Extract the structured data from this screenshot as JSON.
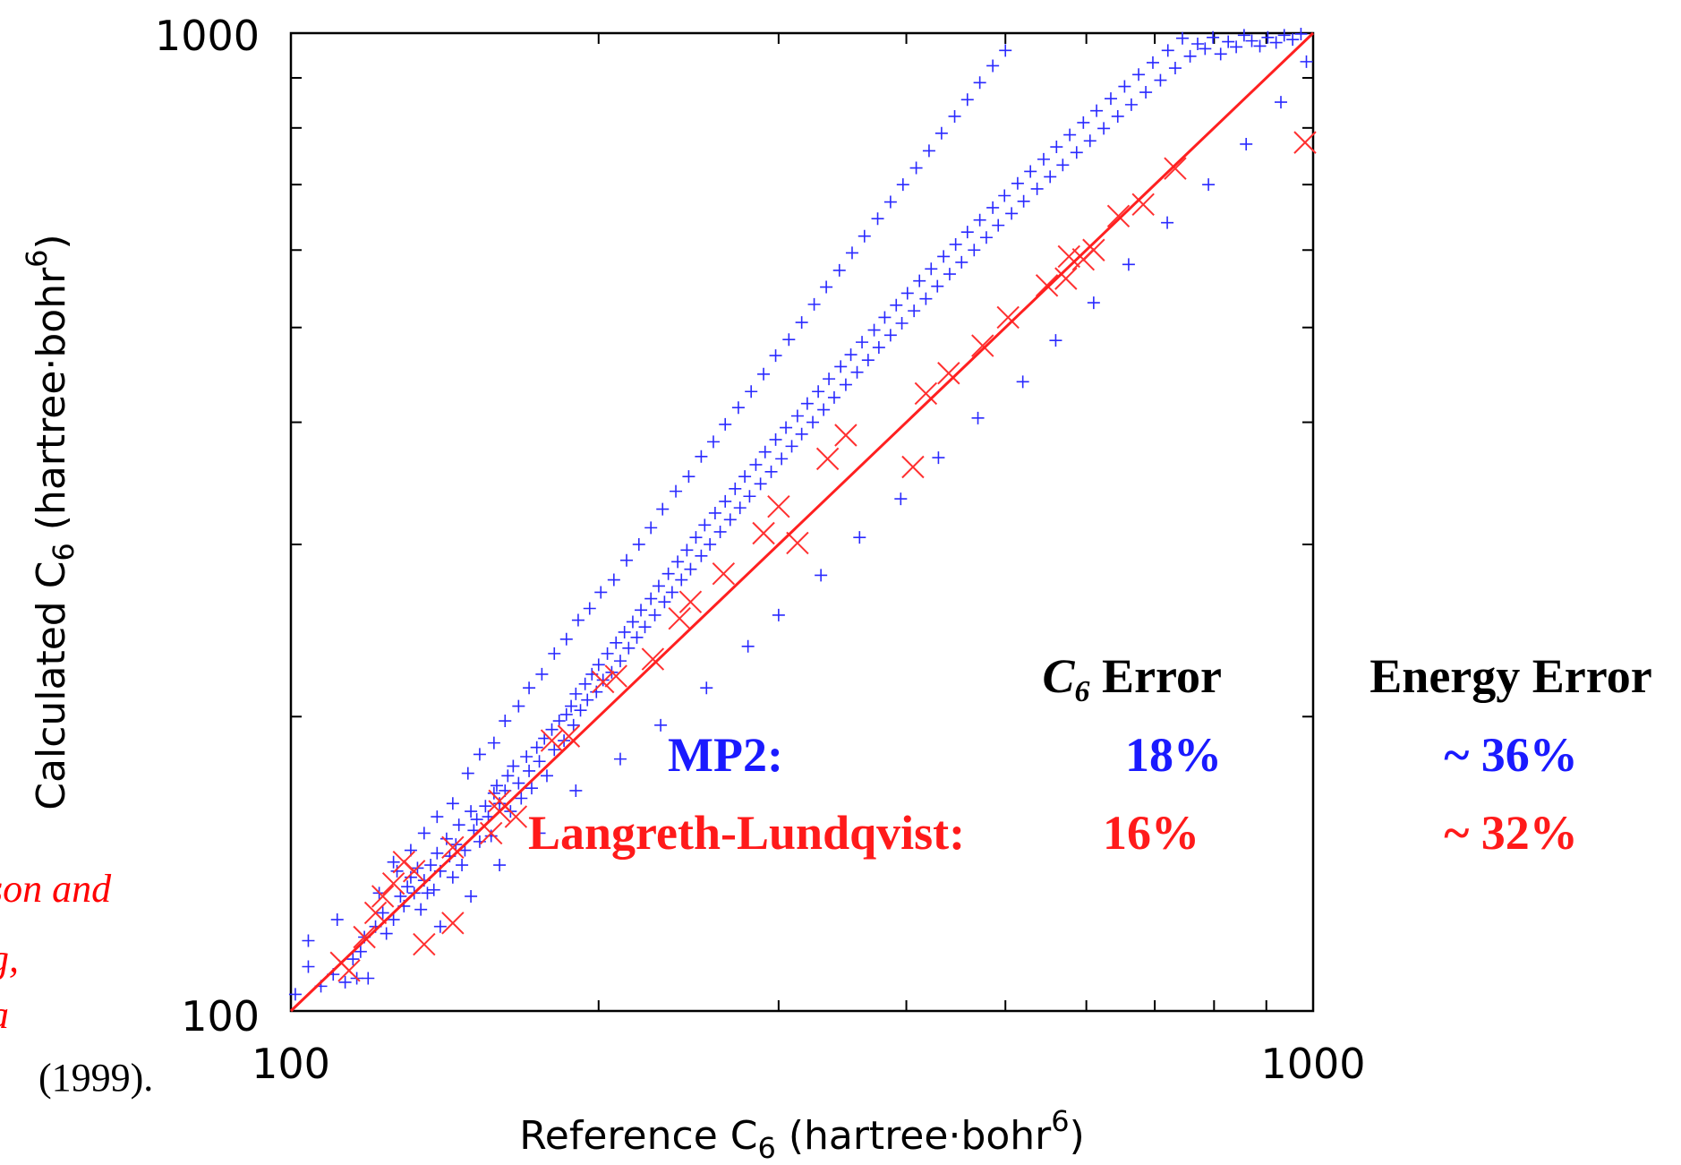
{
  "chart_data": {
    "type": "scatter",
    "title": "",
    "xlabel": {
      "text": "Reference C",
      "sub": "6",
      "unit_pre": " (hartree·bohr",
      "sup": "6",
      "unit_post": ")"
    },
    "ylabel": {
      "text": "Calculated C",
      "sub": "6",
      "unit_pre": " (hartree·bohr",
      "sup": "6",
      "unit_post": ")"
    },
    "xscale": "log",
    "yscale": "log",
    "xlim": [
      100,
      1000
    ],
    "ylim": [
      100,
      1000
    ],
    "x_tick_labels": [
      "100",
      "1000"
    ],
    "y_tick_labels": [
      "100",
      "1000"
    ],
    "reference_line": {
      "from": [
        100,
        100
      ],
      "to": [
        1000,
        1000
      ],
      "color": "#ff2020"
    },
    "series": [
      {
        "marker": "plus",
        "color": "#2a2aff",
        "points": [
          [
            101,
            104
          ],
          [
            104,
            111
          ],
          [
            107,
            106
          ],
          [
            110,
            109
          ],
          [
            113,
            107
          ],
          [
            115,
            113
          ],
          [
            116,
            108
          ],
          [
            118,
            119
          ],
          [
            119,
            108
          ],
          [
            121,
            122
          ],
          [
            123,
            126
          ],
          [
            124,
            120
          ],
          [
            126,
            124
          ],
          [
            127,
            139
          ],
          [
            128,
            131
          ],
          [
            129,
            128
          ],
          [
            130,
            134
          ],
          [
            131,
            137
          ],
          [
            132,
            132
          ],
          [
            133,
            140
          ],
          [
            134,
            127
          ],
          [
            135,
            136
          ],
          [
            136,
            132
          ],
          [
            137,
            141
          ],
          [
            138,
            133
          ],
          [
            139,
            145
          ],
          [
            140,
            139
          ],
          [
            142,
            150
          ],
          [
            143,
            144
          ],
          [
            144,
            137
          ],
          [
            145,
            148
          ],
          [
            146,
            155
          ],
          [
            147,
            141
          ],
          [
            148,
            146
          ],
          [
            150,
            160
          ],
          [
            151,
            153
          ],
          [
            152,
            157
          ],
          [
            153,
            149
          ],
          [
            155,
            162
          ],
          [
            156,
            158
          ],
          [
            157,
            151
          ],
          [
            158,
            167
          ],
          [
            159,
            170
          ],
          [
            160,
            163
          ],
          [
            162,
            168
          ],
          [
            163,
            174
          ],
          [
            164,
            160
          ],
          [
            165,
            178
          ],
          [
            167,
            171
          ],
          [
            168,
            165
          ],
          [
            170,
            182
          ],
          [
            171,
            176
          ],
          [
            172,
            169
          ],
          [
            174,
            186
          ],
          [
            175,
            180
          ],
          [
            177,
            190
          ],
          [
            178,
            174
          ],
          [
            180,
            194
          ],
          [
            181,
            185
          ],
          [
            183,
            198
          ],
          [
            185,
            189
          ],
          [
            186,
            201
          ],
          [
            188,
            205
          ],
          [
            189,
            196
          ],
          [
            190,
            211
          ],
          [
            192,
            203
          ],
          [
            194,
            216
          ],
          [
            195,
            208
          ],
          [
            197,
            221
          ],
          [
            199,
            212
          ],
          [
            200,
            226
          ],
          [
            202,
            218
          ],
          [
            204,
            232
          ],
          [
            206,
            222
          ],
          [
            208,
            238
          ],
          [
            210,
            228
          ],
          [
            212,
            244
          ],
          [
            214,
            235
          ],
          [
            216,
            250
          ],
          [
            218,
            241
          ],
          [
            220,
            257
          ],
          [
            222,
            247
          ],
          [
            225,
            264
          ],
          [
            227,
            254
          ],
          [
            229,
            272
          ],
          [
            232,
            262
          ],
          [
            234,
            280
          ],
          [
            236,
            268
          ],
          [
            239,
            288
          ],
          [
            241,
            276
          ],
          [
            244,
            296
          ],
          [
            246,
            283
          ],
          [
            249,
            305
          ],
          [
            252,
            292
          ],
          [
            254,
            314
          ],
          [
            257,
            300
          ],
          [
            260,
            323
          ],
          [
            263,
            309
          ],
          [
            266,
            332
          ],
          [
            269,
            318
          ],
          [
            272,
            342
          ],
          [
            275,
            327
          ],
          [
            278,
            352
          ],
          [
            281,
            336
          ],
          [
            285,
            362
          ],
          [
            288,
            346
          ],
          [
            291,
            373
          ],
          [
            295,
            356
          ],
          [
            298,
            384
          ],
          [
            302,
            367
          ],
          [
            305,
            395
          ],
          [
            309,
            378
          ],
          [
            313,
            406
          ],
          [
            316,
            389
          ],
          [
            320,
            418
          ],
          [
            324,
            400
          ],
          [
            328,
            430
          ],
          [
            332,
            412
          ],
          [
            336,
            443
          ],
          [
            340,
            424
          ],
          [
            345,
            456
          ],
          [
            349,
            437
          ],
          [
            353,
            469
          ],
          [
            358,
            450
          ],
          [
            362,
            483
          ],
          [
            367,
            463
          ],
          [
            372,
            497
          ],
          [
            376,
            477
          ],
          [
            381,
            512
          ],
          [
            386,
            491
          ],
          [
            391,
            527
          ],
          [
            396,
            505
          ],
          [
            401,
            542
          ],
          [
            407,
            520
          ],
          [
            412,
            558
          ],
          [
            418,
            535
          ],
          [
            423,
            574
          ],
          [
            429,
            551
          ],
          [
            435,
            591
          ],
          [
            441,
            567
          ],
          [
            447,
            608
          ],
          [
            453,
            583
          ],
          [
            459,
            626
          ],
          [
            466,
            600
          ],
          [
            472,
            644
          ],
          [
            479,
            618
          ],
          [
            486,
            663
          ],
          [
            492,
            636
          ],
          [
            499,
            682
          ],
          [
            507,
            654
          ],
          [
            514,
            702
          ],
          [
            521,
            673
          ],
          [
            529,
            722
          ],
          [
            537,
            693
          ],
          [
            545,
            743
          ],
          [
            553,
            713
          ],
          [
            561,
            765
          ],
          [
            569,
            733
          ],
          [
            578,
            787
          ],
          [
            587,
            755
          ],
          [
            596,
            810
          ],
          [
            605,
            776
          ],
          [
            614,
            833
          ],
          [
            624,
            799
          ],
          [
            634,
            857
          ],
          [
            644,
            822
          ],
          [
            654,
            882
          ],
          [
            664,
            845
          ],
          [
            675,
            907
          ],
          [
            686,
            870
          ],
          [
            697,
            933
          ],
          [
            709,
            895
          ],
          [
            721,
            960
          ],
          [
            733,
            921
          ],
          [
            745,
            988
          ],
          [
            758,
            947
          ],
          [
            771,
            975
          ],
          [
            784,
            964
          ],
          [
            798,
            990
          ],
          [
            812,
            952
          ],
          [
            826,
            980
          ],
          [
            841,
            968
          ],
          [
            856,
            995
          ],
          [
            871,
            982
          ],
          [
            887,
            970
          ],
          [
            903,
            990
          ],
          [
            920,
            978
          ],
          [
            937,
            995
          ],
          [
            955,
            985
          ],
          [
            973,
            998
          ],
          [
            104,
            118
          ],
          [
            111,
            124
          ],
          [
            117,
            115
          ],
          [
            122,
            132
          ],
          [
            126,
            142
          ],
          [
            131,
            146
          ],
          [
            135,
            152
          ],
          [
            139,
            158
          ],
          [
            144,
            163
          ],
          [
            149,
            175
          ],
          [
            153,
            183
          ],
          [
            158,
            188
          ],
          [
            162,
            198
          ],
          [
            167,
            205
          ],
          [
            171,
            214
          ],
          [
            176,
            221
          ],
          [
            181,
            232
          ],
          [
            186,
            240
          ],
          [
            191,
            251
          ],
          [
            196,
            258
          ],
          [
            201,
            268
          ],
          [
            207,
            276
          ],
          [
            213,
            289
          ],
          [
            219,
            300
          ],
          [
            225,
            312
          ],
          [
            231,
            326
          ],
          [
            238,
            340
          ],
          [
            245,
            352
          ],
          [
            252,
            369
          ],
          [
            259,
            382
          ],
          [
            266,
            398
          ],
          [
            274,
            414
          ],
          [
            282,
            430
          ],
          [
            290,
            448
          ],
          [
            298,
            468
          ],
          [
            307,
            486
          ],
          [
            316,
            506
          ],
          [
            325,
            528
          ],
          [
            334,
            550
          ],
          [
            344,
            572
          ],
          [
            354,
            596
          ],
          [
            364,
            620
          ],
          [
            375,
            646
          ],
          [
            386,
            672
          ],
          [
            397,
            700
          ],
          [
            409,
            728
          ],
          [
            421,
            758
          ],
          [
            433,
            790
          ],
          [
            446,
            822
          ],
          [
            459,
            855
          ],
          [
            472,
            890
          ],
          [
            486,
            926
          ],
          [
            500,
            960
          ],
          [
            140,
            122
          ],
          [
            150,
            131
          ],
          [
            160,
            141
          ],
          [
            175,
            152
          ],
          [
            190,
            168
          ],
          [
            210,
            181
          ],
          [
            230,
            196
          ],
          [
            255,
            214
          ],
          [
            280,
            236
          ],
          [
            300,
            254
          ],
          [
            330,
            279
          ],
          [
            360,
            305
          ],
          [
            395,
            334
          ],
          [
            430,
            368
          ],
          [
            470,
            404
          ],
          [
            520,
            440
          ],
          [
            560,
            485
          ],
          [
            610,
            530
          ],
          [
            660,
            580
          ],
          [
            720,
            640
          ],
          [
            790,
            700
          ],
          [
            860,
            770
          ],
          [
            930,
            850
          ],
          [
            985,
            935
          ]
        ]
      },
      {
        "marker": "cross",
        "color": "#ff3030",
        "points": [
          [
            112,
            112
          ],
          [
            114,
            110
          ],
          [
            118,
            119
          ],
          [
            121,
            126
          ],
          [
            123,
            131
          ],
          [
            126,
            135
          ],
          [
            129,
            142
          ],
          [
            132,
            139
          ],
          [
            135,
            117
          ],
          [
            144,
            123
          ],
          [
            144,
            147
          ],
          [
            157,
            152
          ],
          [
            160,
            164
          ],
          [
            160,
            160
          ],
          [
            166,
            158
          ],
          [
            180,
            189
          ],
          [
            187,
            191
          ],
          [
            202,
            217
          ],
          [
            208,
            220
          ],
          [
            226,
            229
          ],
          [
            240,
            252
          ],
          [
            246,
            262
          ],
          [
            265,
            280
          ],
          [
            290,
            308
          ],
          [
            300,
            328
          ],
          [
            313,
            301
          ],
          [
            335,
            367
          ],
          [
            349,
            388
          ],
          [
            406,
            360
          ],
          [
            418,
            428
          ],
          [
            440,
            449
          ],
          [
            475,
            479
          ],
          [
            503,
            512
          ],
          [
            549,
            552
          ],
          [
            573,
            561
          ],
          [
            577,
            591
          ],
          [
            596,
            587
          ],
          [
            610,
            600
          ],
          [
            645,
            650
          ],
          [
            682,
            668
          ],
          [
            733,
            727
          ],
          [
            982,
            773
          ]
        ]
      }
    ],
    "annotations": {
      "c6_error_header_sym": "C",
      "c6_error_header_sub": "6",
      "c6_error_header_text": " Error",
      "energy_error_header": "Energy Error",
      "rows": [
        {
          "label": "MP2:",
          "c6_error": "18%",
          "energy_error": "~ 36%",
          "color": "#1a1aff"
        },
        {
          "label": "Langreth-Lundqvist:",
          "c6_error": "16%",
          "energy_error": "~ 32%",
          "color": "#ff1a1a"
        }
      ]
    },
    "citation": {
      "lines": [
        "son and",
        "g,",
        "a"
      ],
      "trailing_line": "(1999)."
    }
  }
}
